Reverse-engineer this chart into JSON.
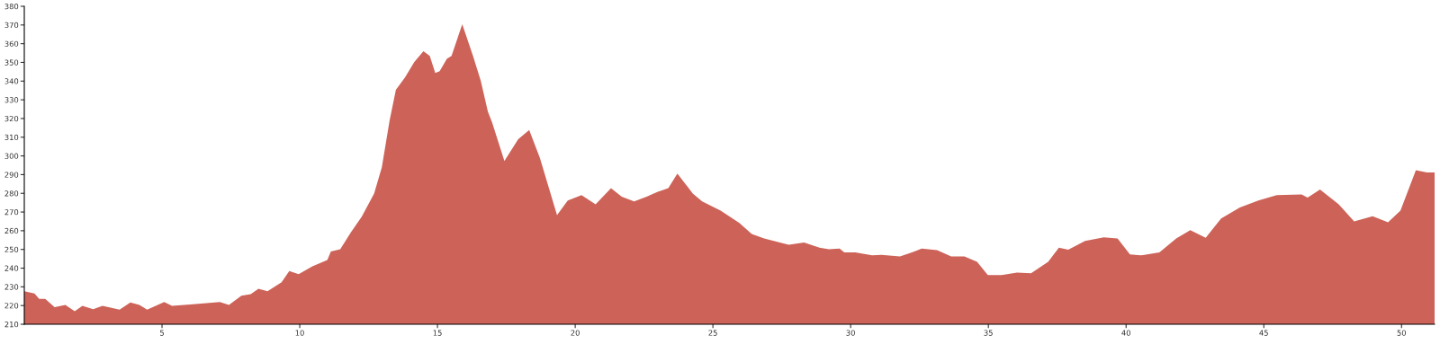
{
  "chart_data": {
    "type": "area",
    "color": "#cd6358",
    "x": [
      0,
      0.37,
      0.54,
      0.76,
      1.1,
      1.49,
      1.83,
      2.11,
      2.5,
      2.84,
      3.46,
      3.85,
      4.18,
      4.46,
      5.08,
      5.36,
      5.81,
      6.42,
      7.1,
      7.43,
      7.88,
      8.22,
      8.5,
      8.83,
      9.34,
      9.62,
      9.96,
      10.46,
      11.0,
      11.13,
      11.47,
      11.86,
      12.25,
      12.7,
      12.98,
      13.26,
      13.49,
      13.82,
      14.16,
      14.49,
      14.72,
      14.92,
      15.08,
      15.34,
      15.51,
      15.9,
      16.29,
      16.57,
      16.83,
      16.98,
      17.43,
      17.93,
      18.33,
      18.72,
      19.34,
      19.73,
      20.23,
      20.74,
      21.3,
      21.69,
      22.14,
      22.59,
      22.98,
      23.38,
      23.71,
      24.27,
      24.61,
      25.28,
      25.96,
      26.41,
      26.86,
      27.75,
      28.31,
      28.87,
      29.21,
      29.6,
      29.77,
      30.17,
      30.78,
      31.12,
      31.79,
      32.13,
      32.58,
      33.14,
      33.65,
      34.13,
      34.59,
      34.98,
      35.48,
      36.04,
      36.55,
      37.17,
      37.56,
      37.9,
      38.51,
      39.19,
      39.69,
      40.14,
      40.53,
      41.21,
      41.82,
      42.33,
      42.89,
      43.45,
      44.13,
      44.8,
      45.47,
      46.37,
      46.59,
      47.04,
      47.72,
      48.28,
      48.95,
      49.51,
      49.96,
      50.52,
      50.92,
      51.2
    ],
    "values": [
      227.7,
      226.4,
      223.6,
      223.6,
      219.1,
      220.3,
      217,
      219.9,
      218.1,
      219.9,
      217.8,
      221.6,
      220.3,
      217.8,
      221.9,
      219.8,
      220.3,
      221.1,
      221.9,
      220.3,
      225.2,
      226.1,
      229,
      227.7,
      232.4,
      238.5,
      236.8,
      241,
      244.3,
      248.9,
      250.1,
      259.2,
      267.5,
      279.9,
      293.9,
      318.8,
      335.3,
      342,
      350.2,
      356,
      353.5,
      344.4,
      345.3,
      351.9,
      353.5,
      370.4,
      353.5,
      340.3,
      323.7,
      318,
      297.3,
      308.9,
      313.8,
      298.9,
      268.3,
      276.1,
      279,
      274.1,
      282.7,
      278.2,
      275.7,
      278.2,
      280.7,
      282.7,
      290.6,
      279.9,
      275.7,
      270.8,
      264.1,
      258.3,
      255.9,
      252.5,
      253.7,
      250.9,
      250.1,
      250.4,
      248.4,
      248.4,
      246.8,
      247.1,
      246.3,
      247.9,
      250.4,
      249.6,
      246.3,
      246.3,
      243.4,
      236.3,
      236.3,
      237.6,
      237.3,
      243.4,
      250.9,
      249.9,
      254.5,
      256.5,
      255.9,
      247.3,
      246.8,
      248.4,
      255.9,
      260.3,
      256.2,
      266.6,
      272.4,
      276.1,
      279,
      279.4,
      277.7,
      282,
      274.1,
      265,
      267.8,
      264.5,
      270.8,
      292.3,
      291.1,
      291.1
    ],
    "xlim": [
      0,
      51.2
    ],
    "xticks": [
      5,
      10,
      15,
      20,
      25,
      30,
      35,
      40,
      45,
      50
    ],
    "ylim": [
      210,
      380
    ],
    "yticks": [
      210,
      220,
      230,
      240,
      250,
      260,
      270,
      280,
      290,
      300,
      310,
      320,
      330,
      340,
      350,
      360,
      370,
      380
    ],
    "grid": false
  }
}
